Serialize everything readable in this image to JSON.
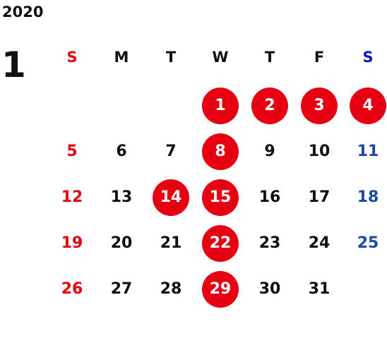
{
  "year": "2020",
  "month": "1",
  "colors": {
    "text": "#111111",
    "sunday": "#e60012",
    "saturday_header": "#0019d4",
    "saturday_date": "#1d4a9c",
    "holiday_circle": "#e60012",
    "holiday_text": "#ffffff"
  },
  "weekday_headers": [
    {
      "label": "S",
      "kind": "sunday"
    },
    {
      "label": "M",
      "kind": "normal"
    },
    {
      "label": "T",
      "kind": "normal"
    },
    {
      "label": "W",
      "kind": "normal"
    },
    {
      "label": "T",
      "kind": "normal"
    },
    {
      "label": "F",
      "kind": "normal"
    },
    {
      "label": "S",
      "kind": "saturday"
    }
  ],
  "weeks": [
    [
      null,
      null,
      null,
      "1",
      "2",
      "3",
      "4"
    ],
    [
      "5",
      "6",
      "7",
      "8",
      "9",
      "10",
      "11"
    ],
    [
      "12",
      "13",
      "14",
      "15",
      "16",
      "17",
      "18"
    ],
    [
      "19",
      "20",
      "21",
      "22",
      "23",
      "24",
      "25"
    ],
    [
      "26",
      "27",
      "28",
      "29",
      "30",
      "31",
      null
    ]
  ],
  "highlighted_dates": [
    "1",
    "2",
    "3",
    "4",
    "8",
    "14",
    "15",
    "22",
    "29"
  ]
}
